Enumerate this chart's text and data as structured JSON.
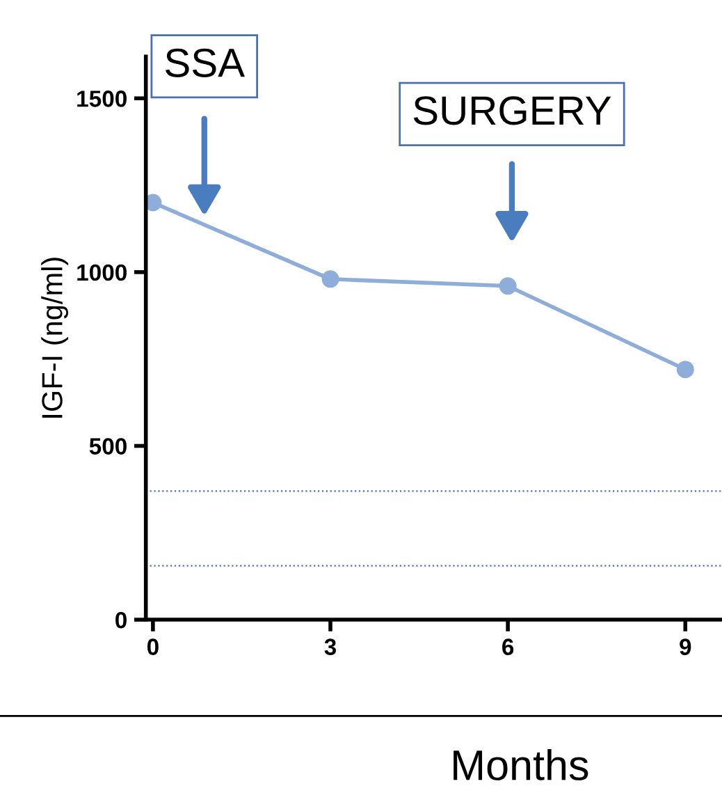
{
  "chart_data": {
    "type": "line",
    "xlabel": "Months",
    "ylabel": "IGF-I (ng/ml)",
    "x": [
      0,
      3,
      6,
      9
    ],
    "series": [
      {
        "color": "#8fadd9",
        "values": [
          1200,
          980,
          960,
          720
        ]
      }
    ],
    "xlim": [
      -0.12,
      9.62
    ],
    "xticks": [
      0,
      3,
      6,
      9
    ],
    "ylim": [
      0,
      1620
    ],
    "yticks": [
      0,
      500,
      1000,
      1500
    ],
    "marker": "circle",
    "line_style": "solid",
    "grid": false,
    "ref_lines": [
      {
        "axis": "y",
        "value": 370,
        "color": "#4a6fb5",
        "line_style": "dotted"
      },
      {
        "axis": "y",
        "value": 155,
        "color": "#4a6fb5",
        "line_style": "dotted"
      }
    ],
    "annotations": [
      "SSA",
      "SURGERY"
    ]
  }
}
